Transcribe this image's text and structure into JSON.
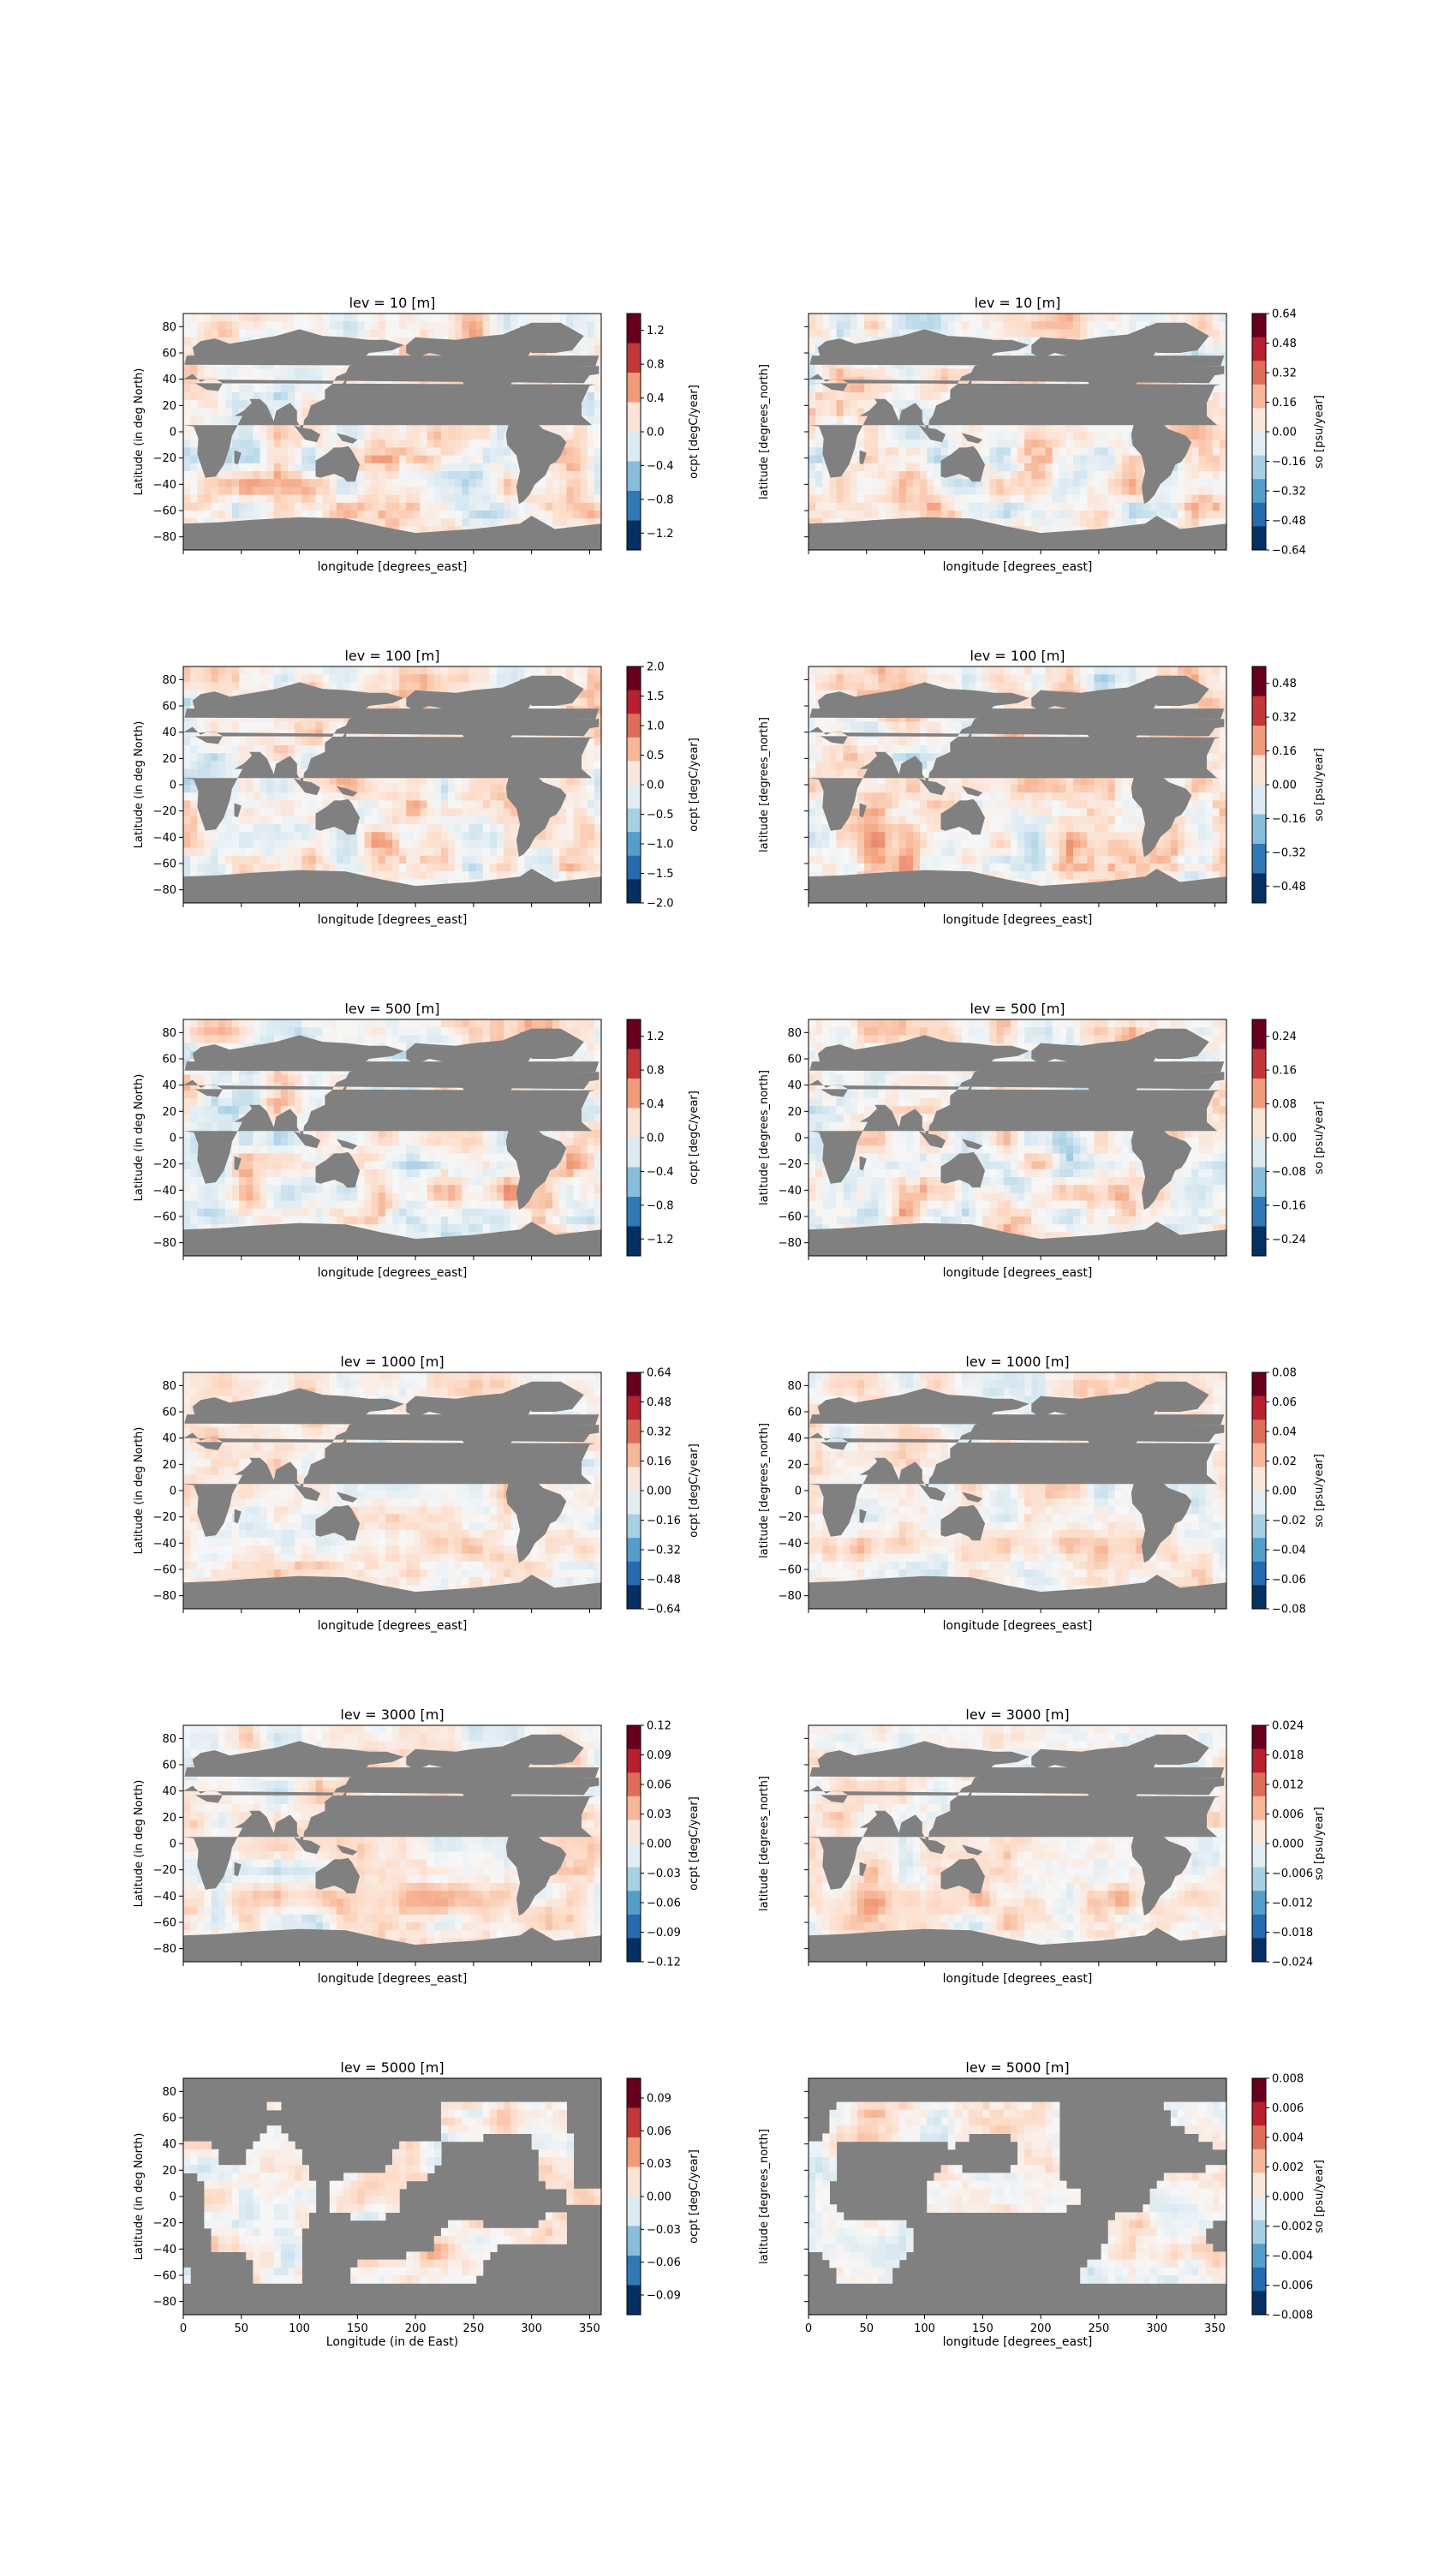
{
  "figure": {
    "background": "#ffffff",
    "land_color": "#808080"
  },
  "chart_data": [
    {
      "type": "heatmap",
      "variable": "ocpt",
      "depth": "10",
      "title": "lev = 10 [m]",
      "xlabel": "longitude [degrees_east]",
      "ylabel": "Latitude (in deg North)",
      "show_ylabel": true,
      "show_xticklabels": false,
      "xlim": [
        0,
        360
      ],
      "ylim": [
        -90,
        90
      ],
      "yticks": [
        "80",
        "60",
        "40",
        "20",
        "0",
        "−20",
        "−40",
        "−60",
        "−80"
      ],
      "colorbar": {
        "label": "ocpt [degC/year]",
        "colormap": "RdBu_r",
        "range": [
          -1.4,
          1.4
        ],
        "ticks": [
          "1.2",
          "0.8",
          "0.4",
          "0.0",
          "−0.4",
          "−0.8",
          "−1.2"
        ]
      }
    },
    {
      "type": "heatmap",
      "variable": "so",
      "depth": "10",
      "title": "lev = 10 [m]",
      "xlabel": "longitude [degrees_east]",
      "ylabel": "latitude [degrees_north]",
      "show_ylabel": true,
      "show_xticklabels": false,
      "xlim": [
        0,
        360
      ],
      "ylim": [
        -90,
        90
      ],
      "yticks": [],
      "colorbar": {
        "label": "so [psu/year]",
        "colormap": "RdBu_r",
        "range": [
          -0.64,
          0.64
        ],
        "ticks": [
          "0.64",
          "0.48",
          "0.32",
          "0.16",
          "0.00",
          "−0.16",
          "−0.32",
          "−0.48",
          "−0.64"
        ]
      }
    },
    {
      "type": "heatmap",
      "variable": "ocpt",
      "depth": "100",
      "title": "lev = 100 [m]",
      "xlabel": "longitude [degrees_east]",
      "ylabel": "Latitude (in deg North)",
      "show_ylabel": true,
      "show_xticklabels": false,
      "xlim": [
        0,
        360
      ],
      "ylim": [
        -90,
        90
      ],
      "yticks": [
        "80",
        "60",
        "40",
        "20",
        "0",
        "−20",
        "−40",
        "−60",
        "−80"
      ],
      "colorbar": {
        "label": "ocpt [degC/year]",
        "colormap": "RdBu_r",
        "range": [
          -2.0,
          2.0
        ],
        "ticks": [
          "2.0",
          "1.5",
          "1.0",
          "0.5",
          "0.0",
          "−0.5",
          "−1.0",
          "−1.5",
          "−2.0"
        ]
      }
    },
    {
      "type": "heatmap",
      "variable": "so",
      "depth": "100",
      "title": "lev = 100 [m]",
      "xlabel": "longitude [degrees_east]",
      "ylabel": "latitude [degrees_north]",
      "show_ylabel": true,
      "show_xticklabels": false,
      "xlim": [
        0,
        360
      ],
      "ylim": [
        -90,
        90
      ],
      "yticks": [],
      "colorbar": {
        "label": "so [psu/year]",
        "colormap": "RdBu_r",
        "range": [
          -0.56,
          0.56
        ],
        "ticks": [
          "0.48",
          "0.32",
          "0.16",
          "0.00",
          "−0.16",
          "−0.32",
          "−0.48"
        ]
      }
    },
    {
      "type": "heatmap",
      "variable": "ocpt",
      "depth": "500",
      "title": "lev = 500 [m]",
      "xlabel": "longitude [degrees_east]",
      "ylabel": "Latitude (in deg North)",
      "show_ylabel": true,
      "show_xticklabels": false,
      "xlim": [
        0,
        360
      ],
      "ylim": [
        -90,
        90
      ],
      "yticks": [
        "80",
        "60",
        "40",
        "20",
        "0",
        "−20",
        "−40",
        "−60",
        "−80"
      ],
      "colorbar": {
        "label": "ocpt [degC/year]",
        "colormap": "RdBu_r",
        "range": [
          -1.4,
          1.4
        ],
        "ticks": [
          "1.2",
          "0.8",
          "0.4",
          "0.0",
          "−0.4",
          "−0.8",
          "−1.2"
        ]
      }
    },
    {
      "type": "heatmap",
      "variable": "so",
      "depth": "500",
      "title": "lev = 500 [m]",
      "xlabel": "longitude [degrees_east]",
      "ylabel": "latitude [degrees_north]",
      "show_ylabel": true,
      "show_xticklabels": false,
      "xlim": [
        0,
        360
      ],
      "ylim": [
        -90,
        90
      ],
      "yticks": [
        "80",
        "60",
        "40",
        "20",
        "0",
        "−20",
        "−40",
        "−60",
        "−80"
      ],
      "colorbar": {
        "label": "so [psu/year]",
        "colormap": "RdBu_r",
        "range": [
          -0.28,
          0.28
        ],
        "ticks": [
          "0.24",
          "0.16",
          "0.08",
          "0.00",
          "−0.08",
          "−0.16",
          "−0.24"
        ]
      }
    },
    {
      "type": "heatmap",
      "variable": "ocpt",
      "depth": "1000",
      "title": "lev = 1000 [m]",
      "xlabel": "longitude [degrees_east]",
      "ylabel": "Latitude (in deg North)",
      "show_ylabel": true,
      "show_xticklabels": false,
      "xlim": [
        0,
        360
      ],
      "ylim": [
        -90,
        90
      ],
      "yticks": [
        "80",
        "60",
        "40",
        "20",
        "0",
        "−20",
        "−40",
        "−60",
        "−80"
      ],
      "colorbar": {
        "label": "ocpt [degC/year]",
        "colormap": "RdBu_r",
        "range": [
          -0.64,
          0.64
        ],
        "ticks": [
          "0.64",
          "0.48",
          "0.32",
          "0.16",
          "0.00",
          "−0.16",
          "−0.32",
          "−0.48",
          "−0.64"
        ]
      }
    },
    {
      "type": "heatmap",
      "variable": "so",
      "depth": "1000",
      "title": "lev = 1000 [m]",
      "xlabel": "longitude [degrees_east]",
      "ylabel": "latitude [degrees_north]",
      "show_ylabel": true,
      "show_xticklabels": false,
      "xlim": [
        0,
        360
      ],
      "ylim": [
        -90,
        90
      ],
      "yticks": [
        "80",
        "60",
        "40",
        "20",
        "0",
        "−20",
        "−40",
        "−60",
        "−80"
      ],
      "colorbar": {
        "label": "so [psu/year]",
        "colormap": "RdBu_r",
        "range": [
          -0.08,
          0.08
        ],
        "ticks": [
          "0.08",
          "0.06",
          "0.04",
          "0.02",
          "0.00",
          "−0.02",
          "−0.04",
          "−0.06",
          "−0.08"
        ]
      }
    },
    {
      "type": "heatmap",
      "variable": "ocpt",
      "depth": "3000",
      "title": "lev = 3000 [m]",
      "xlabel": "longitude [degrees_east]",
      "ylabel": "Latitude (in deg North)",
      "show_ylabel": true,
      "show_xticklabels": false,
      "xlim": [
        0,
        360
      ],
      "ylim": [
        -90,
        90
      ],
      "yticks": [
        "80",
        "60",
        "40",
        "20",
        "0",
        "−20",
        "−40",
        "−60",
        "−80"
      ],
      "colorbar": {
        "label": "ocpt [degC/year]",
        "colormap": "RdBu_r",
        "range": [
          -0.12,
          0.12
        ],
        "ticks": [
          "0.12",
          "0.09",
          "0.06",
          "0.03",
          "0.00",
          "−0.03",
          "−0.06",
          "−0.09",
          "−0.12"
        ]
      }
    },
    {
      "type": "heatmap",
      "variable": "so",
      "depth": "3000",
      "title": "lev = 3000 [m]",
      "xlabel": "longitude [degrees_east]",
      "ylabel": "latitude [degrees_north]",
      "show_ylabel": true,
      "show_xticklabels": false,
      "xlim": [
        0,
        360
      ],
      "ylim": [
        -90,
        90
      ],
      "yticks": [],
      "colorbar": {
        "label": "so [psu/year]",
        "colormap": "RdBu_r",
        "range": [
          -0.024,
          0.024
        ],
        "ticks": [
          "0.024",
          "0.018",
          "0.012",
          "0.006",
          "0.000",
          "−0.006",
          "−0.012",
          "−0.018",
          "−0.024"
        ]
      }
    },
    {
      "type": "heatmap",
      "variable": "ocpt",
      "depth": "5000",
      "title": "lev = 5000 [m]",
      "xlabel": "Longitude (in de East)",
      "ylabel": "Latitude (in deg North)",
      "show_ylabel": true,
      "show_xticklabels": true,
      "xlim": [
        0,
        360
      ],
      "ylim": [
        -90,
        90
      ],
      "yticks": [
        "80",
        "60",
        "40",
        "20",
        "0",
        "−20",
        "−40",
        "−60",
        "−80"
      ],
      "xticks": [
        "0",
        "50",
        "100",
        "150",
        "200",
        "250",
        "300",
        "350"
      ],
      "colorbar": {
        "label": "ocpt [degC/year]",
        "colormap": "RdBu_r",
        "range": [
          -0.108,
          0.108
        ],
        "ticks": [
          "0.09",
          "0.06",
          "0.03",
          "0.00",
          "−0.03",
          "−0.06",
          "−0.09"
        ]
      }
    },
    {
      "type": "heatmap",
      "variable": "so",
      "depth": "5000",
      "title": "lev = 5000 [m]",
      "xlabel": "longitude [degrees_east]",
      "ylabel": "latitude [degrees_north]",
      "show_ylabel": true,
      "show_xticklabels": true,
      "xlim": [
        0,
        360
      ],
      "ylim": [
        -90,
        90
      ],
      "yticks": [],
      "xticks": [
        "0",
        "50",
        "100",
        "150",
        "200",
        "250",
        "300",
        "350"
      ],
      "colorbar": {
        "label": "so [psu/year]",
        "colormap": "RdBu_r",
        "range": [
          -0.008,
          0.008
        ],
        "ticks": [
          "0.008",
          "0.006",
          "0.004",
          "0.002",
          "0.000",
          "−0.002",
          "−0.004",
          "−0.006",
          "−0.008"
        ]
      }
    }
  ]
}
